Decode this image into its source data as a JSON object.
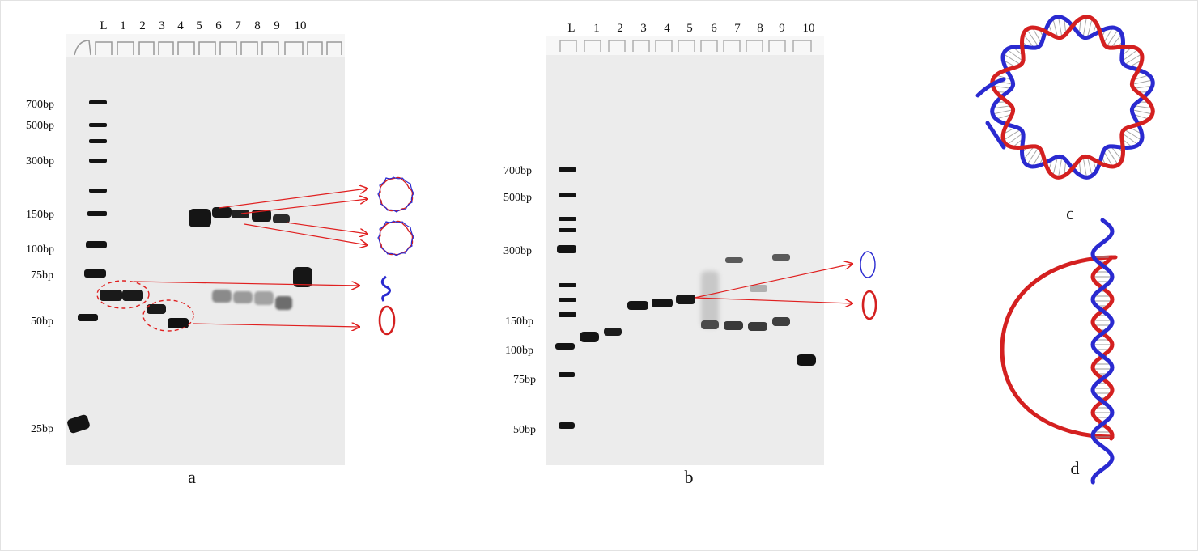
{
  "gel_a": {
    "panel_label": "a",
    "lane_labels": [
      "L",
      "1",
      "2",
      "3",
      "4",
      "5",
      "6",
      "7",
      "8",
      "9",
      "10"
    ],
    "size_markers": [
      "700bp",
      "500bp",
      "300bp",
      "150bp",
      "100bp",
      "75bp",
      "50bp",
      "25bp"
    ]
  },
  "gel_b": {
    "panel_label": "b",
    "lane_labels": [
      "L",
      "1",
      "2",
      "3",
      "4",
      "5",
      "6",
      "7",
      "8",
      "9",
      "10"
    ],
    "size_markers": [
      "700bp",
      "500bp",
      "300bp",
      "150bp",
      "100bp",
      "75bp",
      "50bp"
    ]
  },
  "panel_c": {
    "label": "c"
  },
  "panel_d": {
    "label": "d"
  },
  "colors": {
    "red": "#d42020",
    "blue": "#2a2ad0",
    "arrow": "#e02020",
    "gel_bg": "#ececec",
    "band": "#111111"
  }
}
